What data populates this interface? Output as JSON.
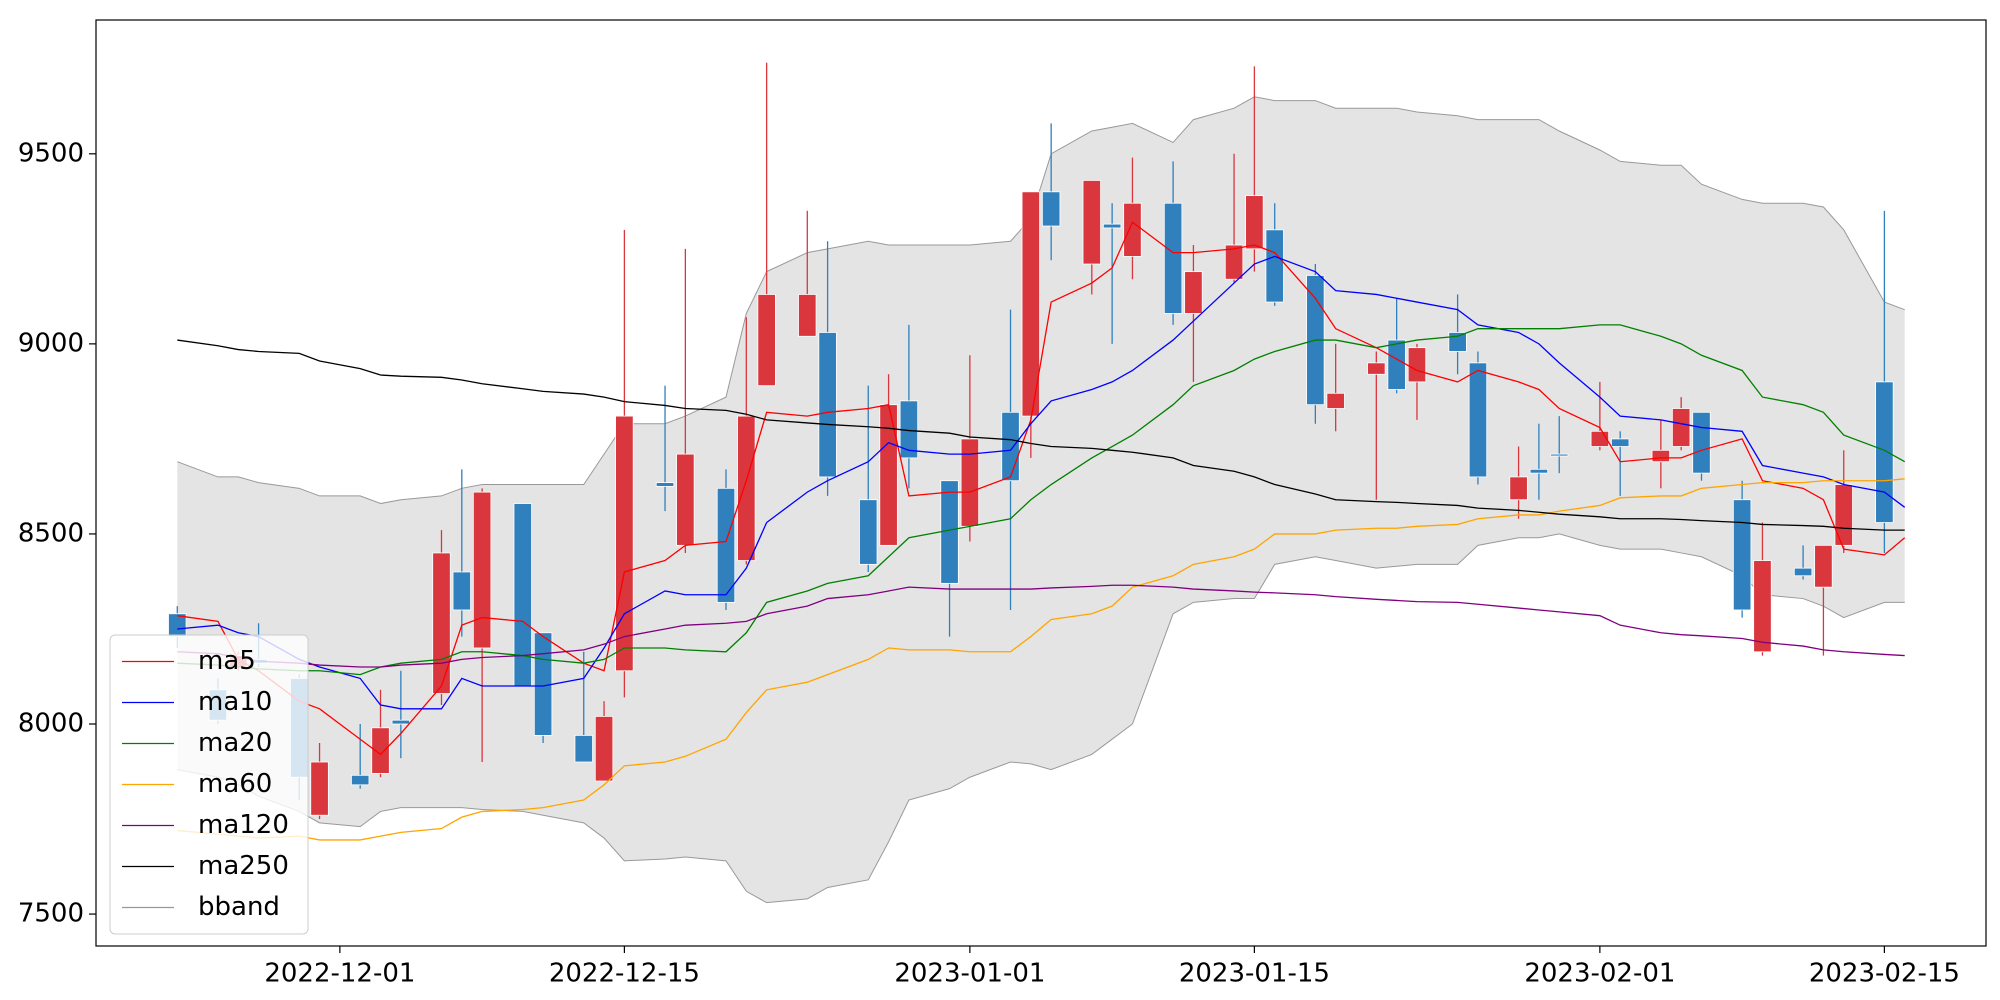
{
  "chart_data": {
    "type": "candlestick",
    "x": [
      "2022-11-23",
      "2022-11-25",
      "2022-11-26",
      "2022-11-27",
      "2022-11-29",
      "2022-11-30",
      "2022-12-02",
      "2022-12-03",
      "2022-12-04",
      "2022-12-06",
      "2022-12-07",
      "2022-12-08",
      "2022-12-10",
      "2022-12-11",
      "2022-12-13",
      "2022-12-14",
      "2022-12-15",
      "2022-12-17",
      "2022-12-18",
      "2022-12-20",
      "2022-12-21",
      "2022-12-22",
      "2022-12-24",
      "2022-12-25",
      "2022-12-27",
      "2022-12-28",
      "2022-12-29",
      "2022-12-31",
      "2023-01-01",
      "2023-01-03",
      "2023-01-04",
      "2023-01-05",
      "2023-01-07",
      "2023-01-08",
      "2023-01-09",
      "2023-01-11",
      "2023-01-12",
      "2023-01-14",
      "2023-01-15",
      "2023-01-16",
      "2023-01-18",
      "2023-01-19",
      "2023-01-21",
      "2023-01-22",
      "2023-01-23",
      "2023-01-25",
      "2023-01-26",
      "2023-01-28",
      "2023-01-29",
      "2023-01-30",
      "2023-02-01",
      "2023-02-02",
      "2023-02-04",
      "2023-02-05",
      "2023-02-06",
      "2023-02-08",
      "2023-02-09",
      "2023-02-11",
      "2023-02-12",
      "2023-02-13",
      "2023-02-15",
      "2023-02-16"
    ],
    "open": [
      8290,
      8090,
      8150,
      8170,
      8120,
      7760,
      7865,
      7870,
      8010,
      8080,
      8400,
      8200,
      8580,
      8240,
      7970,
      7850,
      8140,
      8635,
      8470,
      8620,
      8430,
      8890,
      9020,
      9030,
      8590,
      8470,
      8850,
      8640,
      8520,
      8820,
      8810,
      9400,
      9210,
      9315,
      9230,
      9370,
      9080,
      9170,
      9250,
      9300,
      9180,
      8830,
      8920,
      9010,
      8900,
      9030,
      8950,
      8590,
      8670,
      8710,
      8730,
      8750,
      8690,
      8730,
      8820,
      8590,
      8190,
      8410,
      8360,
      8470,
      8900,
      null
    ],
    "high": [
      8310,
      8120,
      8190,
      8265,
      8130,
      7950,
      8000,
      8090,
      8140,
      8510,
      8670,
      8620,
      8580,
      8240,
      8190,
      8060,
      9300,
      8890,
      9250,
      8670,
      9070,
      9740,
      9350,
      9270,
      8890,
      8920,
      9050,
      8640,
      8970,
      9090,
      9400,
      9580,
      9430,
      9370,
      9490,
      9480,
      9260,
      9500,
      9730,
      9370,
      9210,
      9000,
      8980,
      9120,
      9000,
      9130,
      8980,
      8730,
      8790,
      8810,
      8900,
      8770,
      8800,
      8860,
      8820,
      8640,
      8530,
      8470,
      8470,
      8720,
      9350,
      null
    ],
    "low": [
      8200,
      8000,
      8140,
      8150,
      7800,
      7750,
      7830,
      7860,
      7910,
      8050,
      8230,
      7900,
      8100,
      7950,
      7900,
      7850,
      8070,
      8560,
      8450,
      8300,
      8420,
      8890,
      9020,
      8600,
      8400,
      8470,
      8620,
      8230,
      8480,
      8300,
      8700,
      9220,
      9130,
      9000,
      9170,
      9050,
      8900,
      9160,
      9190,
      9100,
      8790,
      8770,
      8590,
      8870,
      8800,
      8920,
      8630,
      8540,
      8590,
      8660,
      8720,
      8600,
      8620,
      8720,
      8640,
      8280,
      8180,
      8380,
      8180,
      8450,
      8450,
      null
    ],
    "close": [
      8230,
      8010,
      8180,
      8160,
      7860,
      7900,
      7840,
      7990,
      8000,
      8450,
      8300,
      8610,
      8100,
      7970,
      7900,
      8020,
      8810,
      8625,
      8710,
      8320,
      8810,
      9130,
      9130,
      8650,
      8420,
      8840,
      8700,
      8370,
      8750,
      8640,
      9400,
      9310,
      9430,
      9305,
      9370,
      9080,
      9190,
      9260,
      9390,
      9110,
      8840,
      8870,
      8950,
      8880,
      8990,
      8980,
      8650,
      8650,
      8660,
      8705,
      8770,
      8730,
      8720,
      8830,
      8660,
      8300,
      8430,
      8390,
      8470,
      8630,
      8530,
      null
    ],
    "up_color": "#d9363e",
    "down_color": "#3080bd",
    "series": [
      {
        "name": "ma5",
        "color": "#ff0000",
        "values": [
          8285,
          8270,
          8170,
          8140,
          8060,
          8040,
          7960,
          7920,
          7975,
          8100,
          8260,
          8280,
          8270,
          8230,
          8160,
          8140,
          8400,
          8430,
          8470,
          8480,
          8640,
          8820,
          8810,
          8820,
          8830,
          8840,
          8600,
          8610,
          8610,
          8650,
          8800,
          9110,
          9160,
          9200,
          9320,
          9240,
          9240,
          9250,
          9260,
          9240,
          9120,
          9040,
          8990,
          8960,
          8930,
          8900,
          8930,
          8900,
          8880,
          8830,
          8780,
          8690,
          8700,
          8700,
          8720,
          8750,
          8640,
          8620,
          8590,
          8460,
          8445,
          8490
        ]
      },
      {
        "name": "ma10",
        "color": "#0000ff",
        "values": [
          8250,
          8260,
          8240,
          8230,
          8170,
          8150,
          8120,
          8050,
          8040,
          8040,
          8120,
          8100,
          8100,
          8100,
          8120,
          8200,
          8290,
          8350,
          8340,
          8340,
          8410,
          8530,
          8610,
          8640,
          8690,
          8740,
          8720,
          8710,
          8710,
          8720,
          8790,
          8850,
          8880,
          8900,
          8930,
          9010,
          9060,
          9160,
          9210,
          9230,
          9190,
          9140,
          9130,
          9120,
          9110,
          9090,
          9050,
          9030,
          9000,
          8950,
          8860,
          8810,
          8800,
          8790,
          8780,
          8770,
          8680,
          8660,
          8650,
          8630,
          8610,
          8570
        ]
      },
      {
        "name": "ma20",
        "color": "#008000",
        "values": [
          8160,
          8155,
          8150,
          8145,
          8140,
          8140,
          8130,
          8150,
          8160,
          8170,
          8190,
          8190,
          8180,
          8170,
          8160,
          8170,
          8200,
          8200,
          8195,
          8190,
          8240,
          8320,
          8350,
          8370,
          8390,
          8440,
          8490,
          8510,
          8520,
          8540,
          8590,
          8630,
          8700,
          8730,
          8760,
          8840,
          8890,
          8930,
          8960,
          8980,
          9010,
          9010,
          8990,
          9000,
          9010,
          9020,
          9040,
          9040,
          9040,
          9040,
          9050,
          9050,
          9020,
          9000,
          8970,
          8930,
          8860,
          8840,
          8820,
          8760,
          8720,
          8690
        ]
      },
      {
        "name": "ma60",
        "color": "#ffa500",
        "values": [
          7720,
          7710,
          7705,
          7700,
          7705,
          7695,
          7695,
          7705,
          7715,
          7725,
          7755,
          7770,
          7775,
          7780,
          7800,
          7840,
          7890,
          7900,
          7915,
          7960,
          8030,
          8090,
          8110,
          8130,
          8170,
          8200,
          8195,
          8195,
          8190,
          8190,
          8230,
          8275,
          8290,
          8310,
          8360,
          8390,
          8420,
          8440,
          8460,
          8500,
          8500,
          8510,
          8515,
          8515,
          8520,
          8525,
          8540,
          8550,
          8550,
          8560,
          8575,
          8595,
          8600,
          8600,
          8620,
          8630,
          8635,
          8635,
          8640,
          8640,
          8640,
          8645
        ]
      },
      {
        "name": "ma120",
        "color": "#800080",
        "values": [
          8190,
          8185,
          8175,
          8165,
          8160,
          8155,
          8150,
          8150,
          8155,
          8160,
          8170,
          8175,
          8180,
          8185,
          8195,
          8210,
          8230,
          8250,
          8260,
          8265,
          8270,
          8290,
          8310,
          8330,
          8340,
          8350,
          8360,
          8355,
          8355,
          8355,
          8355,
          8358,
          8362,
          8365,
          8365,
          8360,
          8355,
          8350,
          8347,
          8345,
          8340,
          8335,
          8328,
          8325,
          8322,
          8320,
          8315,
          8305,
          8300,
          8295,
          8285,
          8260,
          8240,
          8235,
          8232,
          8225,
          8215,
          8205,
          8195,
          8190,
          8183,
          8180
        ]
      },
      {
        "name": "ma250",
        "color": "#000000",
        "values": [
          9010,
          8995,
          8985,
          8980,
          8975,
          8955,
          8935,
          8918,
          8915,
          8912,
          8905,
          8895,
          8882,
          8875,
          8868,
          8860,
          8848,
          8838,
          8830,
          8825,
          8815,
          8800,
          8792,
          8788,
          8782,
          8778,
          8772,
          8765,
          8755,
          8748,
          8738,
          8730,
          8725,
          8720,
          8715,
          8700,
          8680,
          8665,
          8650,
          8630,
          8605,
          8590,
          8585,
          8583,
          8580,
          8575,
          8568,
          8562,
          8557,
          8552,
          8545,
          8540,
          8540,
          8538,
          8535,
          8530,
          8525,
          8522,
          8520,
          8515,
          8510,
          8510
        ]
      }
    ],
    "band": {
      "name": "bband",
      "color": "#999999",
      "fill": "#e4e4e4",
      "upper": [
        8690,
        8650,
        8650,
        8635,
        8620,
        8600,
        8600,
        8580,
        8590,
        8600,
        8620,
        8630,
        8630,
        8630,
        8630,
        8710,
        8790,
        8790,
        8810,
        8860,
        9080,
        9190,
        9240,
        9250,
        9270,
        9260,
        9260,
        9260,
        9260,
        9270,
        9330,
        9500,
        9560,
        9570,
        9580,
        9530,
        9590,
        9620,
        9650,
        9640,
        9640,
        9620,
        9620,
        9620,
        9610,
        9600,
        9590,
        9590,
        9590,
        9560,
        9510,
        9480,
        9470,
        9470,
        9420,
        9380,
        9370,
        9370,
        9360,
        9300,
        9110,
        9090
      ],
      "lower": [
        7880,
        7860,
        7840,
        7810,
        7770,
        7740,
        7730,
        7770,
        7780,
        7780,
        7780,
        7775,
        7770,
        7760,
        7740,
        7700,
        7640,
        7645,
        7650,
        7640,
        7560,
        7530,
        7540,
        7570,
        7590,
        7690,
        7800,
        7830,
        7860,
        7900,
        7895,
        7880,
        7920,
        7960,
        8000,
        8290,
        8320,
        8330,
        8330,
        8420,
        8440,
        8430,
        8410,
        8415,
        8420,
        8420,
        8470,
        8490,
        8490,
        8500,
        8470,
        8460,
        8460,
        8450,
        8440,
        8390,
        8340,
        8330,
        8310,
        8280,
        8320,
        8320
      ]
    },
    "xlim": [
      "2022-11-19",
      "2023-02-20"
    ],
    "ylim": [
      7416,
      9852
    ],
    "xticks": [
      "2022-12-01",
      "2022-12-15",
      "2023-01-01",
      "2023-01-15",
      "2023-02-01",
      "2023-02-15"
    ],
    "yticks": [
      7500,
      8000,
      8500,
      9000,
      9500
    ],
    "legend": "lower left"
  }
}
